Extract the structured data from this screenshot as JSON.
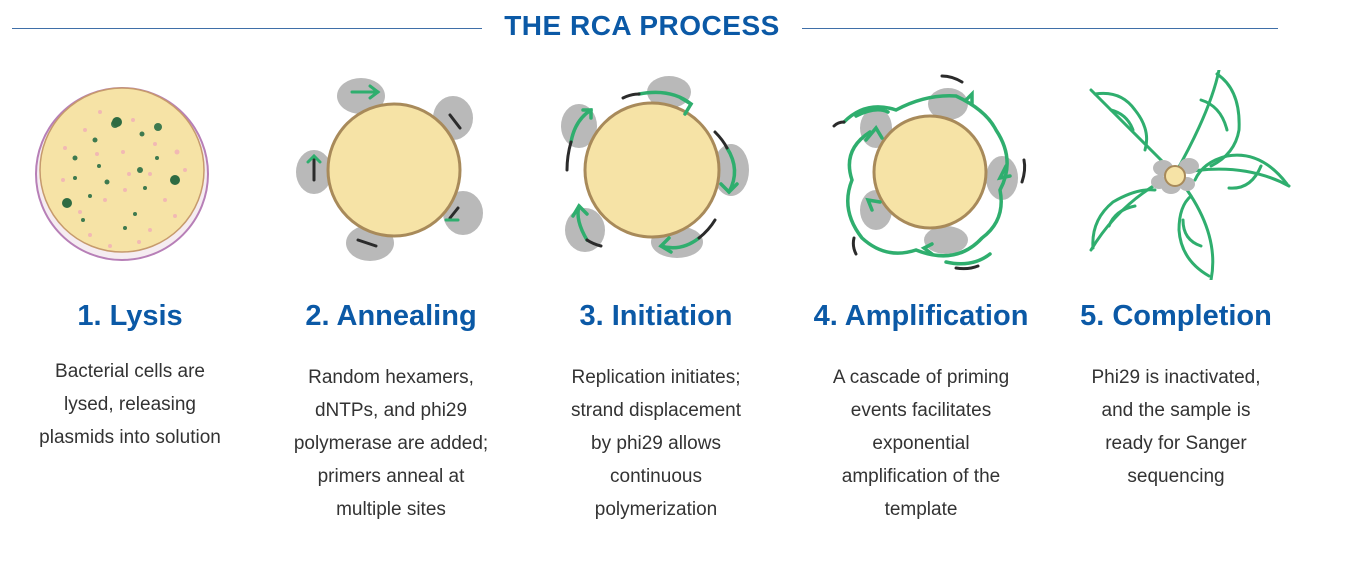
{
  "title": "THE RCA PROCESS",
  "colors": {
    "accent": "#0b59a6",
    "strand": "#2fae6e",
    "template": "#f6e3a6",
    "protein": "#b9b9b9"
  },
  "steps": [
    {
      "heading": "1. Lysis",
      "lines": [
        "Bacterial cells are",
        "lysed, releasing",
        "plasmids into solution"
      ]
    },
    {
      "heading": "2. Annealing",
      "lines": [
        "Random hexamers,",
        "dNTPs, and phi29",
        "polymerase are added;",
        "primers anneal at",
        "multiple sites"
      ]
    },
    {
      "heading": "3. Initiation",
      "lines": [
        "Replication initiates;",
        "strand displacement",
        "by phi29 allows",
        "continuous",
        "polymerization"
      ]
    },
    {
      "heading": "4. Amplification",
      "lines": [
        "A cascade of priming",
        "events facilitates",
        "exponential",
        "amplification of the",
        "template"
      ]
    },
    {
      "heading": "5. Completion",
      "lines": [
        "Phi29 is inactivated,",
        "and the sample is",
        "ready for Sanger",
        "sequencing"
      ]
    }
  ]
}
